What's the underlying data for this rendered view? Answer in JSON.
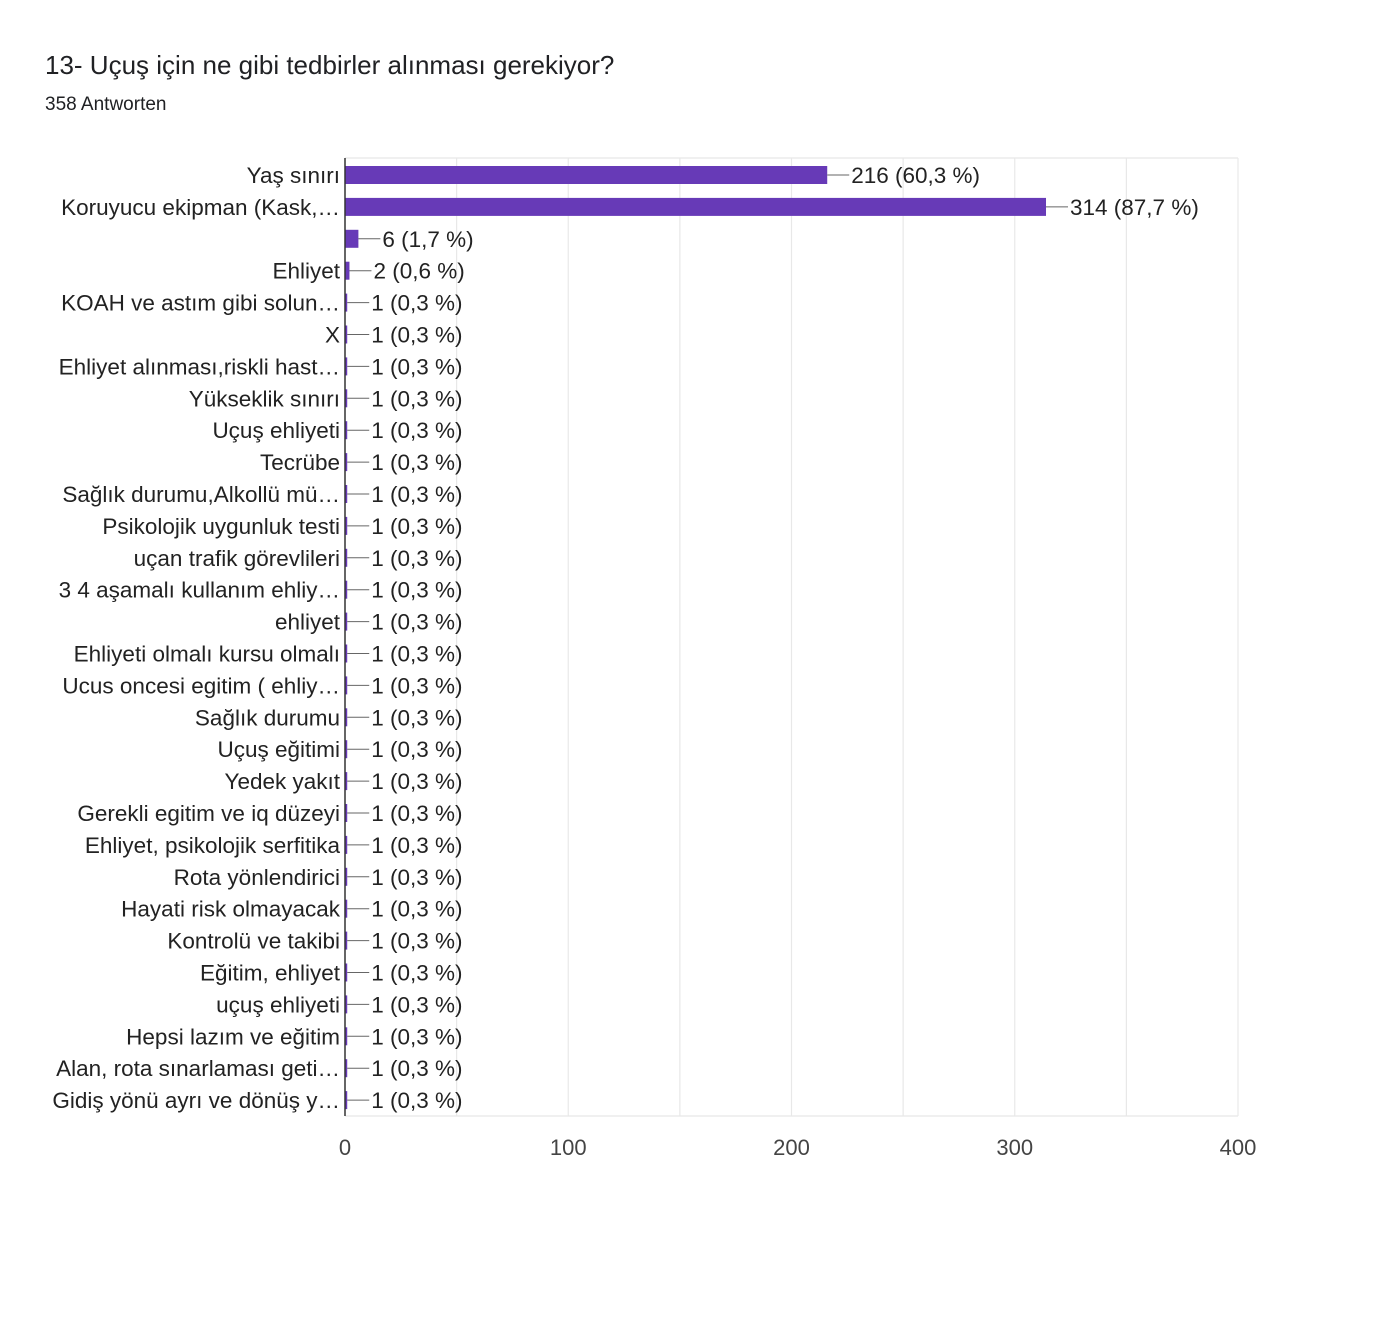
{
  "header": {
    "title": "13- Uçuş için ne gibi tedbirler alınması gerekiyor?",
    "subtitle": "358 Antworten"
  },
  "colors": {
    "bar": "#673ab7",
    "axis": "#333333",
    "grid": "#e8e8e8",
    "text": "#222222",
    "tick_text": "#444444"
  },
  "chart_data": {
    "type": "bar",
    "orientation": "horizontal",
    "xlim": [
      0,
      400
    ],
    "x_ticks": [
      0,
      100,
      200,
      300,
      400
    ],
    "grid": true,
    "categories": [
      "Yaş sınırı",
      "Koruyucu ekipman (Kask,…",
      "",
      "Ehliyet",
      "KOAH ve astım gibi solun…",
      "X",
      "Ehliyet alınması,riskli hast…",
      "Yükseklik sınırı",
      "Uçuş ehliyeti",
      "Tecrübe",
      "Sağlık durumu,Alkollü mü…",
      "Psikolojik uygunluk testi",
      "uçan trafik görevlileri",
      "3 4 aşamalı kullanım ehliy…",
      "ehliyet",
      "Ehliyeti olmalı kursu olmalı",
      "Ucus oncesi egitim ( ehliy…",
      "Sağlık durumu",
      "Uçuş eğitimi",
      "Yedek yakıt",
      "Gerekli egitim ve iq düzeyi",
      "Ehliyet, psikolojik serfitika",
      "Rota yönlendirici",
      "Hayati risk olmayacak",
      "Kontrolü ve takibi",
      "Eğitim, ehliyet",
      "uçuş ehliyeti",
      "Hepsi lazım ve eğitim",
      "Alan, rota sınarlaması geti…",
      "Gidiş yönü ayrı ve dönüş y…"
    ],
    "values": [
      216,
      314,
      6,
      2,
      1,
      1,
      1,
      1,
      1,
      1,
      1,
      1,
      1,
      1,
      1,
      1,
      1,
      1,
      1,
      1,
      1,
      1,
      1,
      1,
      1,
      1,
      1,
      1,
      1,
      1
    ],
    "labels": [
      "216 (60,3 %)",
      "314 (87,7 %)",
      "6 (1,7 %)",
      "2 (0,6 %)",
      "1 (0,3 %)",
      "1 (0,3 %)",
      "1 (0,3 %)",
      "1 (0,3 %)",
      "1 (0,3 %)",
      "1 (0,3 %)",
      "1 (0,3 %)",
      "1 (0,3 %)",
      "1 (0,3 %)",
      "1 (0,3 %)",
      "1 (0,3 %)",
      "1 (0,3 %)",
      "1 (0,3 %)",
      "1 (0,3 %)",
      "1 (0,3 %)",
      "1 (0,3 %)",
      "1 (0,3 %)",
      "1 (0,3 %)",
      "1 (0,3 %)",
      "1 (0,3 %)",
      "1 (0,3 %)",
      "1 (0,3 %)",
      "1 (0,3 %)",
      "1 (0,3 %)",
      "1 (0,3 %)",
      "1 (0,3 %)"
    ]
  }
}
